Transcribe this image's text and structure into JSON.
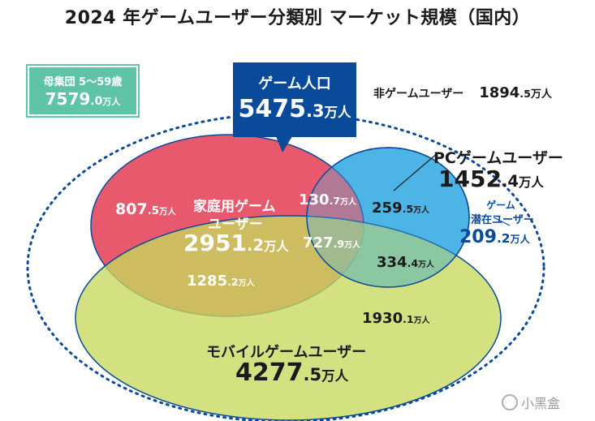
{
  "title": "2024 年ゲームユーザー分類別 マーケット規模（国内）",
  "colors": {
    "console": "#e8596d",
    "pc": "#4db5e6",
    "mobile": "#c7d85c",
    "game_population_box": "#0a4a9a",
    "population_box": "#5fc4a6",
    "dotted_border": "#0a4a9a"
  },
  "population": {
    "label": "母集団 5～59歳",
    "int": "7579",
    "dec": ".0",
    "unit": "万人"
  },
  "game_population": {
    "label": "ゲーム人口",
    "int": "5475",
    "dec": ".3",
    "unit": "万人"
  },
  "non_game_users": {
    "label": "非ゲームユーザー",
    "int": "1894",
    "dec": ".5",
    "unit": "万人"
  },
  "pc_users": {
    "label": "PCゲームユーザー",
    "int": "1452",
    "dec": ".4",
    "unit": "万人"
  },
  "potential_users": {
    "label_line1": "ゲーム",
    "label_line2": "潜在ユーザー",
    "int": "209",
    "dec": ".2",
    "unit": "万人"
  },
  "console_users": {
    "label_line1": "家庭用ゲーム",
    "label_line2": "ユーザー",
    "int": "2951",
    "dec": ".2",
    "unit": "万人"
  },
  "mobile_users": {
    "label": "モバイルゲームユーザー",
    "int": "4277",
    "dec": ".5",
    "unit": "万人"
  },
  "segments": {
    "console_only": {
      "int": "807",
      "dec": ".5",
      "unit": "万人"
    },
    "console_pc": {
      "int": "130",
      "dec": ".7",
      "unit": "万人"
    },
    "pc_only": {
      "int": "259",
      "dec": ".5",
      "unit": "万人"
    },
    "all_three": {
      "int": "727",
      "dec": ".9",
      "unit": "万人"
    },
    "pc_mobile": {
      "int": "334",
      "dec": ".4",
      "unit": "万人"
    },
    "console_mobile": {
      "int": "1285",
      "dec": ".2",
      "unit": "万人"
    },
    "mobile_only": {
      "int": "1930",
      "dec": ".1",
      "unit": "万人"
    }
  },
  "watermark": "小黑盒"
}
